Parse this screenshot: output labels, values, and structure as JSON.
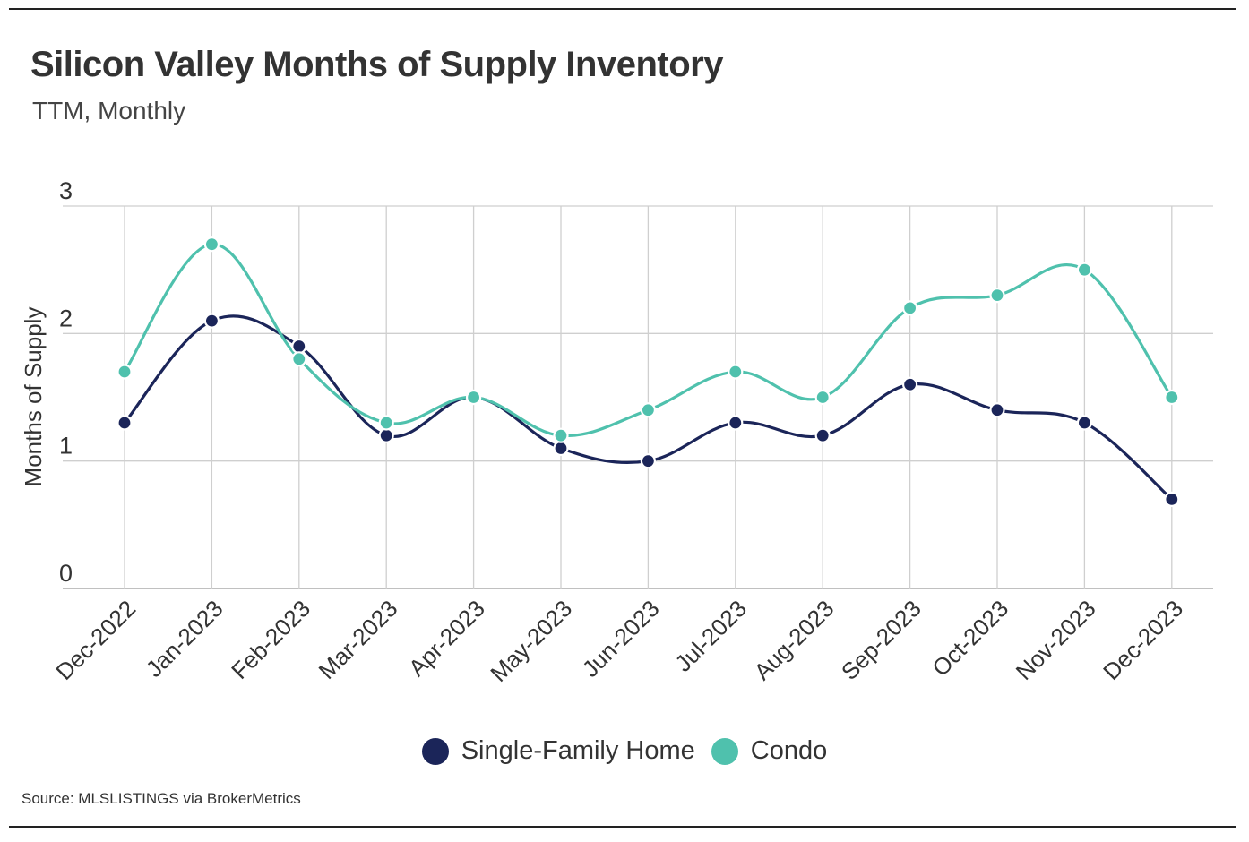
{
  "header": {
    "title": "Silicon Valley Months of Supply Inventory",
    "subtitle": "TTM, Monthly"
  },
  "source": "Source:  MLSLISTINGS via BrokerMetrics",
  "colors": {
    "single_family": "#1b2559",
    "condo": "#4fc1ad",
    "grid": "#cfcfcf",
    "axis_text": "#333333"
  },
  "chart_data": {
    "type": "line",
    "title": "Silicon Valley Months of Supply Inventory",
    "subtitle": "TTM, Monthly",
    "xlabel": "",
    "ylabel": "Months of Supply",
    "ylim": [
      0,
      3
    ],
    "yticks": [
      "0",
      "1",
      "2",
      "3"
    ],
    "grid": true,
    "legend_position": "bottom-center",
    "categories": [
      "Dec-2022",
      "Jan-2023",
      "Feb-2023",
      "Mar-2023",
      "Apr-2023",
      "May-2023",
      "Jun-2023",
      "Jul-2023",
      "Aug-2023",
      "Sep-2023",
      "Oct-2023",
      "Nov-2023",
      "Dec-2023"
    ],
    "series": [
      {
        "name": "Single-Family Home",
        "values": [
          1.3,
          2.1,
          1.9,
          1.2,
          1.5,
          1.1,
          1.0,
          1.3,
          1.2,
          1.6,
          1.4,
          1.3,
          0.7
        ]
      },
      {
        "name": "Condo",
        "values": [
          1.7,
          2.7,
          1.8,
          1.3,
          1.5,
          1.2,
          1.4,
          1.7,
          1.5,
          2.2,
          2.3,
          2.5,
          1.5
        ]
      }
    ]
  }
}
